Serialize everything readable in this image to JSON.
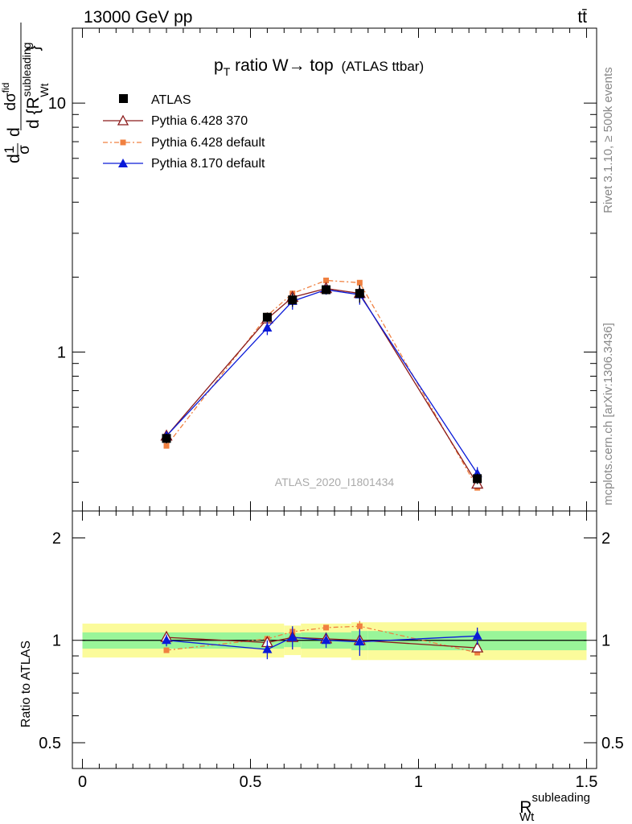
{
  "header": {
    "energy_label": "13000 GeV pp",
    "process_label": "tt̄"
  },
  "side_labels": {
    "rivet": "Rivet 3.1.10, ≥ 500k events",
    "mcplots": "mcplots.cern.ch [arXiv:1306.3436]"
  },
  "colors": {
    "atlas": "#000000",
    "py6_370": "#8b1a1a",
    "py6_default": "#f08040",
    "py8_default": "#0a1ad8",
    "band_inner": "#99f599",
    "band_outer": "#fbfb9b"
  },
  "chart_data": [
    {
      "type": "line",
      "title_main": "p",
      "title_sub": "T",
      "title_rest": " ratio W→ top",
      "title_tag": "(ATLAS ttbar)",
      "watermark": "ATLAS_2020_I1801434",
      "ylabel": {
        "main": "d",
        "frac1_num": "1",
        "frac1_den": "σ",
        "frac2_num": "dσ",
        "frac2_num_sup": "fid",
        "frac2_den": "d {R",
        "frac2_den_sup": "subleading",
        "frac2_den_sub": "Wt",
        "frac2_den_close": "}"
      },
      "y_scale": "log",
      "ylim": [
        0.23,
        20
      ],
      "xlim": [
        -0.03,
        1.53
      ],
      "y_tick_labels": [
        {
          "value": 1,
          "label": "1"
        },
        {
          "value": 10,
          "label": "10"
        }
      ],
      "legend": {
        "placement": "top-left",
        "entries": [
          {
            "name": "ATLAS",
            "marker": "square",
            "color": "#000000"
          },
          {
            "name": "Pythia 6.428 370",
            "marker": "open-triangle",
            "color": "#8b1a1a"
          },
          {
            "name": "Pythia 6.428 default",
            "marker": "small-square",
            "color": "#f08040",
            "dash": "dashdot"
          },
          {
            "name": "Pythia 8.170 default",
            "marker": "triangle",
            "color": "#0a1ad8"
          }
        ]
      },
      "series": [
        {
          "name": "ATLAS",
          "x": [
            0.25,
            0.55,
            0.625,
            0.725,
            0.825,
            1.175
          ],
          "y": [
            0.45,
            1.38,
            1.62,
            1.78,
            1.72,
            0.31
          ],
          "err": [
            0.02,
            0.06,
            0.1,
            0.07,
            0.14,
            0.015
          ]
        },
        {
          "name": "Pythia 6.428 370",
          "x": [
            0.25,
            0.55,
            0.625,
            0.725,
            0.825,
            1.175
          ],
          "y": [
            0.46,
            1.36,
            1.66,
            1.8,
            1.72,
            0.295
          ]
        },
        {
          "name": "Pythia 6.428 default",
          "x": [
            0.25,
            0.55,
            0.625,
            0.725,
            0.825,
            1.175
          ],
          "y": [
            0.42,
            1.4,
            1.72,
            1.94,
            1.9,
            0.285
          ]
        },
        {
          "name": "Pythia 8.170 default",
          "x": [
            0.25,
            0.55,
            0.625,
            0.725,
            0.825,
            1.175
          ],
          "y": [
            0.46,
            1.25,
            1.6,
            1.78,
            1.7,
            0.325
          ],
          "err": [
            0.02,
            0.08,
            0.12,
            0.08,
            0.15,
            0.02
          ]
        }
      ]
    },
    {
      "type": "line",
      "ylabel": "Ratio to ATLAS",
      "xlabel": {
        "main": "R",
        "sup": "subleading",
        "sub": "Wt"
      },
      "y_scale": "log",
      "ylim": [
        0.42,
        2.4
      ],
      "xlim": [
        -0.03,
        1.53
      ],
      "x_tick_labels": [
        {
          "value": 0,
          "label": "0"
        },
        {
          "value": 0.5,
          "label": "0.5"
        },
        {
          "value": 1,
          "label": "1"
        },
        {
          "value": 1.5,
          "label": "1.5"
        }
      ],
      "y_tick_labels": [
        {
          "value": 0.5,
          "label": "0.5"
        },
        {
          "value": 1,
          "label": "1"
        },
        {
          "value": 2,
          "label": "2"
        }
      ],
      "bands": [
        {
          "x0": 0.0,
          "x1": 0.5,
          "inner": [
            0.945,
            1.055
          ],
          "outer": [
            0.89,
            1.12
          ]
        },
        {
          "x0": 0.5,
          "x1": 0.6,
          "inner": [
            0.945,
            1.055
          ],
          "outer": [
            0.89,
            1.12
          ]
        },
        {
          "x0": 0.6,
          "x1": 0.65,
          "inner": [
            0.955,
            1.05
          ],
          "outer": [
            0.905,
            1.105
          ]
        },
        {
          "x0": 0.65,
          "x1": 0.8,
          "inner": [
            0.945,
            1.055
          ],
          "outer": [
            0.89,
            1.12
          ]
        },
        {
          "x0": 0.8,
          "x1": 0.85,
          "inner": [
            0.935,
            1.065
          ],
          "outer": [
            0.875,
            1.13
          ]
        },
        {
          "x0": 0.85,
          "x1": 1.5,
          "inner": [
            0.935,
            1.065
          ],
          "outer": [
            0.875,
            1.13
          ]
        }
      ],
      "series": [
        {
          "name": "Pythia 6.428 370",
          "x": [
            0.25,
            0.55,
            0.625,
            0.725,
            0.825,
            1.175
          ],
          "y": [
            1.02,
            0.985,
            1.02,
            1.01,
            1.0,
            0.95
          ]
        },
        {
          "name": "Pythia 6.428 default",
          "x": [
            0.25,
            0.55,
            0.625,
            0.725,
            0.825,
            1.175
          ],
          "y": [
            0.935,
            1.01,
            1.06,
            1.09,
            1.1,
            0.92
          ],
          "err": [
            0.01,
            0.02,
            0.03,
            0.02,
            0.04,
            0.01
          ]
        },
        {
          "name": "Pythia 8.170 default",
          "x": [
            0.25,
            0.55,
            0.625,
            0.725,
            0.825,
            1.175
          ],
          "y": [
            1.0,
            0.94,
            1.02,
            1.0,
            0.99,
            1.03
          ],
          "err": [
            0.04,
            0.06,
            0.08,
            0.05,
            0.09,
            0.06
          ]
        }
      ]
    }
  ]
}
